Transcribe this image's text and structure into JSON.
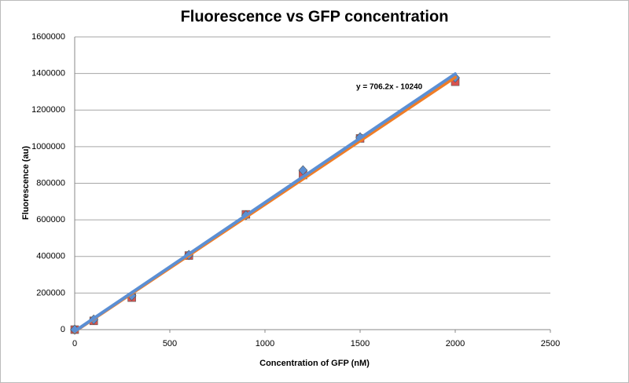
{
  "chart_data": {
    "type": "scatter",
    "title": "Fluorescence vs GFP concentration",
    "x_label": "Concentration of GFP (nM)",
    "y_label": "Fluorescence (au)",
    "annotation": "y = 706.2x - 10240",
    "x": [
      0,
      100,
      300,
      600,
      900,
      1200,
      1500,
      2000
    ],
    "series": [
      {
        "color": "#d9534f",
        "trendline_color": "#f07d26",
        "marker": "square",
        "values": [
          0,
          48000,
          175000,
          405000,
          630000,
          845000,
          1045000,
          1355000
        ]
      },
      {
        "color": "#5b8fd4",
        "trendline_color": "#5b8fd4",
        "marker": "diamond",
        "values": [
          0,
          55000,
          185000,
          408000,
          625000,
          871000,
          1051000,
          1377000
        ]
      }
    ],
    "xlim": [
      0,
      2500
    ],
    "xticks": [
      0,
      500,
      1000,
      1500,
      2000,
      2500
    ],
    "ylim": [
      0,
      1600000
    ],
    "yticks": [
      0,
      200000,
      400000,
      600000,
      800000,
      1000000,
      1200000,
      1400000,
      1600000
    ],
    "grid": true
  }
}
